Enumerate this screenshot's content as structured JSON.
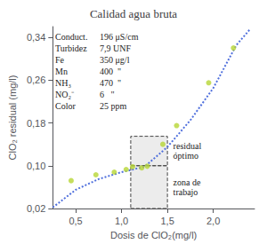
{
  "chart_data": {
    "type": "scatter",
    "title": "Calidad agua bruta",
    "xlabel": "Dosis de ClO₂(mg/l)",
    "ylabel": "ClO₂ residual (mg/l)",
    "series": [
      {
        "type": "line",
        "line_style": "dotted",
        "x": [
          0.25,
          0.5,
          0.75,
          1.0,
          1.25,
          1.5,
          1.75,
          2.0,
          2.25,
          2.4
        ],
        "values": [
          0.022,
          0.055,
          0.075,
          0.088,
          0.098,
          0.135,
          0.185,
          0.245,
          0.325,
          0.355
        ]
      },
      {
        "type": "scatter",
        "x": [
          0.45,
          0.72,
          0.92,
          1.05,
          1.12,
          1.22,
          1.28,
          1.45,
          1.6,
          1.95,
          2.22
        ],
        "values": [
          0.072,
          0.083,
          0.088,
          0.093,
          0.098,
          0.096,
          0.099,
          0.14,
          0.175,
          0.255,
          0.32
        ]
      }
    ],
    "xlim": [
      0.25,
      2.45
    ],
    "ylim": [
      0.02,
      0.36
    ],
    "xticks": [
      {
        "value": 0.5,
        "label": "0,5"
      },
      {
        "value": 1.0,
        "label": "1,0"
      },
      {
        "value": 1.5,
        "label": "1,5"
      },
      {
        "value": 2.0,
        "label": "2,0"
      }
    ],
    "yticks": [
      {
        "value": 0.02,
        "label": "0,02"
      },
      {
        "value": 0.1,
        "label": "0,10"
      },
      {
        "value": 0.18,
        "label": "0,18"
      },
      {
        "value": 0.26,
        "label": "0,26"
      },
      {
        "value": 0.34,
        "label": "0,34"
      }
    ],
    "grid": false,
    "regions": [
      {
        "x": [
          1.1,
          1.5
        ],
        "y": [
          0.02,
          0.1
        ],
        "label": "zona de\ntrabajo"
      },
      {
        "x": [
          1.1,
          1.5
        ],
        "y": [
          0.1,
          0.155
        ],
        "label": "residual\nóptimo"
      }
    ],
    "info": [
      {
        "label": "Conduct.",
        "value": "196 μS/cm"
      },
      {
        "label": "Turbidez",
        "value": "7,9 UNF"
      },
      {
        "label": "Fe",
        "value": "350 μg/l"
      },
      {
        "label": "Mn",
        "value": "400  \""
      },
      {
        "label": "NH₃",
        "value": "470  \""
      },
      {
        "label": "NO₂⁻",
        "value": "6   \""
      },
      {
        "label": "Color",
        "value": "25 ppm"
      }
    ]
  }
}
